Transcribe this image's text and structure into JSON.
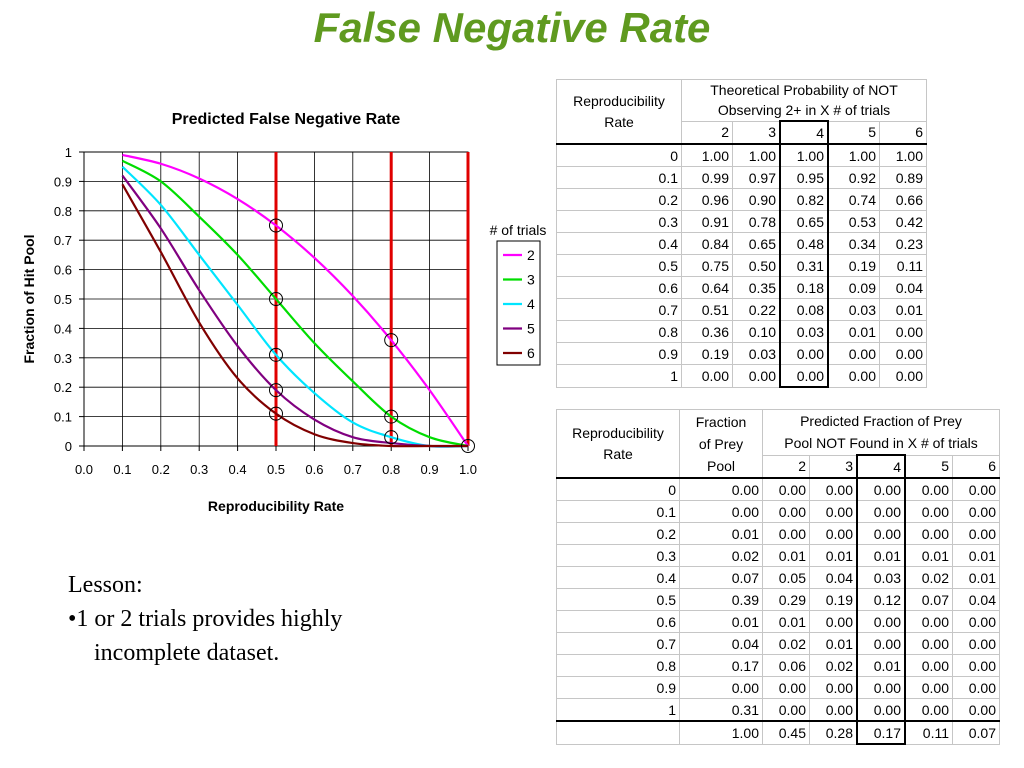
{
  "slide": {
    "title": "False Negative Rate",
    "lesson_heading": "Lesson:",
    "lesson_line1": "•1 or 2 trials provides highly",
    "lesson_line2": "incomplete dataset."
  },
  "chart_data": {
    "type": "line",
    "title": "Predicted False Negative Rate",
    "xlabel": "Reproducibility Rate",
    "ylabel": "Fraction of Hit Pool",
    "xlim": [
      0.0,
      1.0
    ],
    "ylim": [
      0,
      1
    ],
    "x_ticks": [
      "0.0",
      "0.1",
      "0.2",
      "0.3",
      "0.4",
      "0.5",
      "0.6",
      "0.7",
      "0.8",
      "0.9",
      "1.0"
    ],
    "y_ticks": [
      "0",
      "0.1",
      "0.2",
      "0.3",
      "0.4",
      "0.5",
      "0.6",
      "0.7",
      "0.8",
      "0.9",
      "1"
    ],
    "grid": true,
    "legend_title": "# of trials",
    "legend_position": "right",
    "x": [
      0.1,
      0.2,
      0.3,
      0.4,
      0.5,
      0.6,
      0.7,
      0.8,
      0.9,
      1.0
    ],
    "series": [
      {
        "name": "2",
        "color": "#ff00ff",
        "values": [
          0.99,
          0.96,
          0.91,
          0.84,
          0.75,
          0.64,
          0.51,
          0.36,
          0.19,
          0.0
        ]
      },
      {
        "name": "3",
        "color": "#00dd00",
        "values": [
          0.97,
          0.9,
          0.78,
          0.65,
          0.5,
          0.35,
          0.22,
          0.1,
          0.03,
          0.0
        ]
      },
      {
        "name": "4",
        "color": "#00e5ff",
        "values": [
          0.95,
          0.82,
          0.65,
          0.48,
          0.31,
          0.18,
          0.08,
          0.03,
          0.0,
          0.0
        ]
      },
      {
        "name": "5",
        "color": "#800080",
        "values": [
          0.92,
          0.74,
          0.53,
          0.34,
          0.19,
          0.09,
          0.03,
          0.01,
          0.0,
          0.0
        ]
      },
      {
        "name": "6",
        "color": "#800000",
        "values": [
          0.89,
          0.66,
          0.42,
          0.23,
          0.11,
          0.04,
          0.01,
          0.0,
          0.0,
          0.0
        ]
      }
    ],
    "vertical_lines": {
      "x": [
        0.5,
        0.8,
        1.0
      ],
      "color": "#e00000"
    },
    "circled_points": [
      [
        0.5,
        0.75
      ],
      [
        0.5,
        0.5
      ],
      [
        0.5,
        0.31
      ],
      [
        0.5,
        0.19
      ],
      [
        0.5,
        0.11
      ],
      [
        0.8,
        0.36
      ],
      [
        0.8,
        0.1
      ],
      [
        0.8,
        0.03
      ],
      [
        1.0,
        0.0
      ]
    ]
  },
  "table1": {
    "row_header": [
      "Reproducibility",
      "Rate"
    ],
    "group_header": [
      "Theoretical Probability of NOT",
      "Observing 2+  in X # of trials"
    ],
    "columns": [
      "2",
      "3",
      "4",
      "5",
      "6"
    ],
    "rows": [
      {
        "rate": "0",
        "vals": [
          "1.00",
          "1.00",
          "1.00",
          "1.00",
          "1.00"
        ]
      },
      {
        "rate": "0.1",
        "vals": [
          "0.99",
          "0.97",
          "0.95",
          "0.92",
          "0.89"
        ]
      },
      {
        "rate": "0.2",
        "vals": [
          "0.96",
          "0.90",
          "0.82",
          "0.74",
          "0.66"
        ]
      },
      {
        "rate": "0.3",
        "vals": [
          "0.91",
          "0.78",
          "0.65",
          "0.53",
          "0.42"
        ]
      },
      {
        "rate": "0.4",
        "vals": [
          "0.84",
          "0.65",
          "0.48",
          "0.34",
          "0.23"
        ]
      },
      {
        "rate": "0.5",
        "vals": [
          "0.75",
          "0.50",
          "0.31",
          "0.19",
          "0.11"
        ]
      },
      {
        "rate": "0.6",
        "vals": [
          "0.64",
          "0.35",
          "0.18",
          "0.09",
          "0.04"
        ]
      },
      {
        "rate": "0.7",
        "vals": [
          "0.51",
          "0.22",
          "0.08",
          "0.03",
          "0.01"
        ]
      },
      {
        "rate": "0.8",
        "vals": [
          "0.36",
          "0.10",
          "0.03",
          "0.01",
          "0.00"
        ]
      },
      {
        "rate": "0.9",
        "vals": [
          "0.19",
          "0.03",
          "0.00",
          "0.00",
          "0.00"
        ]
      },
      {
        "rate": "1",
        "vals": [
          "0.00",
          "0.00",
          "0.00",
          "0.00",
          "0.00"
        ]
      }
    ]
  },
  "table2": {
    "row_header": [
      "Reproducibility",
      "Rate"
    ],
    "fraction_header": [
      "Fraction",
      "of Prey",
      "Pool"
    ],
    "group_header": [
      "Predicted Fraction of Prey",
      "Pool NOT Found in X # of trials"
    ],
    "columns": [
      "2",
      "3",
      "4",
      "5",
      "6"
    ],
    "rows": [
      {
        "rate": "0",
        "frac": "0.00",
        "vals": [
          "0.00",
          "0.00",
          "0.00",
          "0.00",
          "0.00"
        ]
      },
      {
        "rate": "0.1",
        "frac": "0.00",
        "vals": [
          "0.00",
          "0.00",
          "0.00",
          "0.00",
          "0.00"
        ]
      },
      {
        "rate": "0.2",
        "frac": "0.01",
        "vals": [
          "0.00",
          "0.00",
          "0.00",
          "0.00",
          "0.00"
        ]
      },
      {
        "rate": "0.3",
        "frac": "0.02",
        "vals": [
          "0.01",
          "0.01",
          "0.01",
          "0.01",
          "0.01"
        ]
      },
      {
        "rate": "0.4",
        "frac": "0.07",
        "vals": [
          "0.05",
          "0.04",
          "0.03",
          "0.02",
          "0.01"
        ]
      },
      {
        "rate": "0.5",
        "frac": "0.39",
        "vals": [
          "0.29",
          "0.19",
          "0.12",
          "0.07",
          "0.04"
        ]
      },
      {
        "rate": "0.6",
        "frac": "0.01",
        "vals": [
          "0.01",
          "0.00",
          "0.00",
          "0.00",
          "0.00"
        ]
      },
      {
        "rate": "0.7",
        "frac": "0.04",
        "vals": [
          "0.02",
          "0.01",
          "0.00",
          "0.00",
          "0.00"
        ]
      },
      {
        "rate": "0.8",
        "frac": "0.17",
        "vals": [
          "0.06",
          "0.02",
          "0.01",
          "0.00",
          "0.00"
        ]
      },
      {
        "rate": "0.9",
        "frac": "0.00",
        "vals": [
          "0.00",
          "0.00",
          "0.00",
          "0.00",
          "0.00"
        ]
      },
      {
        "rate": "1",
        "frac": "0.31",
        "vals": [
          "0.00",
          "0.00",
          "0.00",
          "0.00",
          "0.00"
        ]
      }
    ],
    "totals": {
      "frac": "1.00",
      "vals": [
        "0.45",
        "0.28",
        "0.17",
        "0.11",
        "0.07"
      ]
    }
  }
}
